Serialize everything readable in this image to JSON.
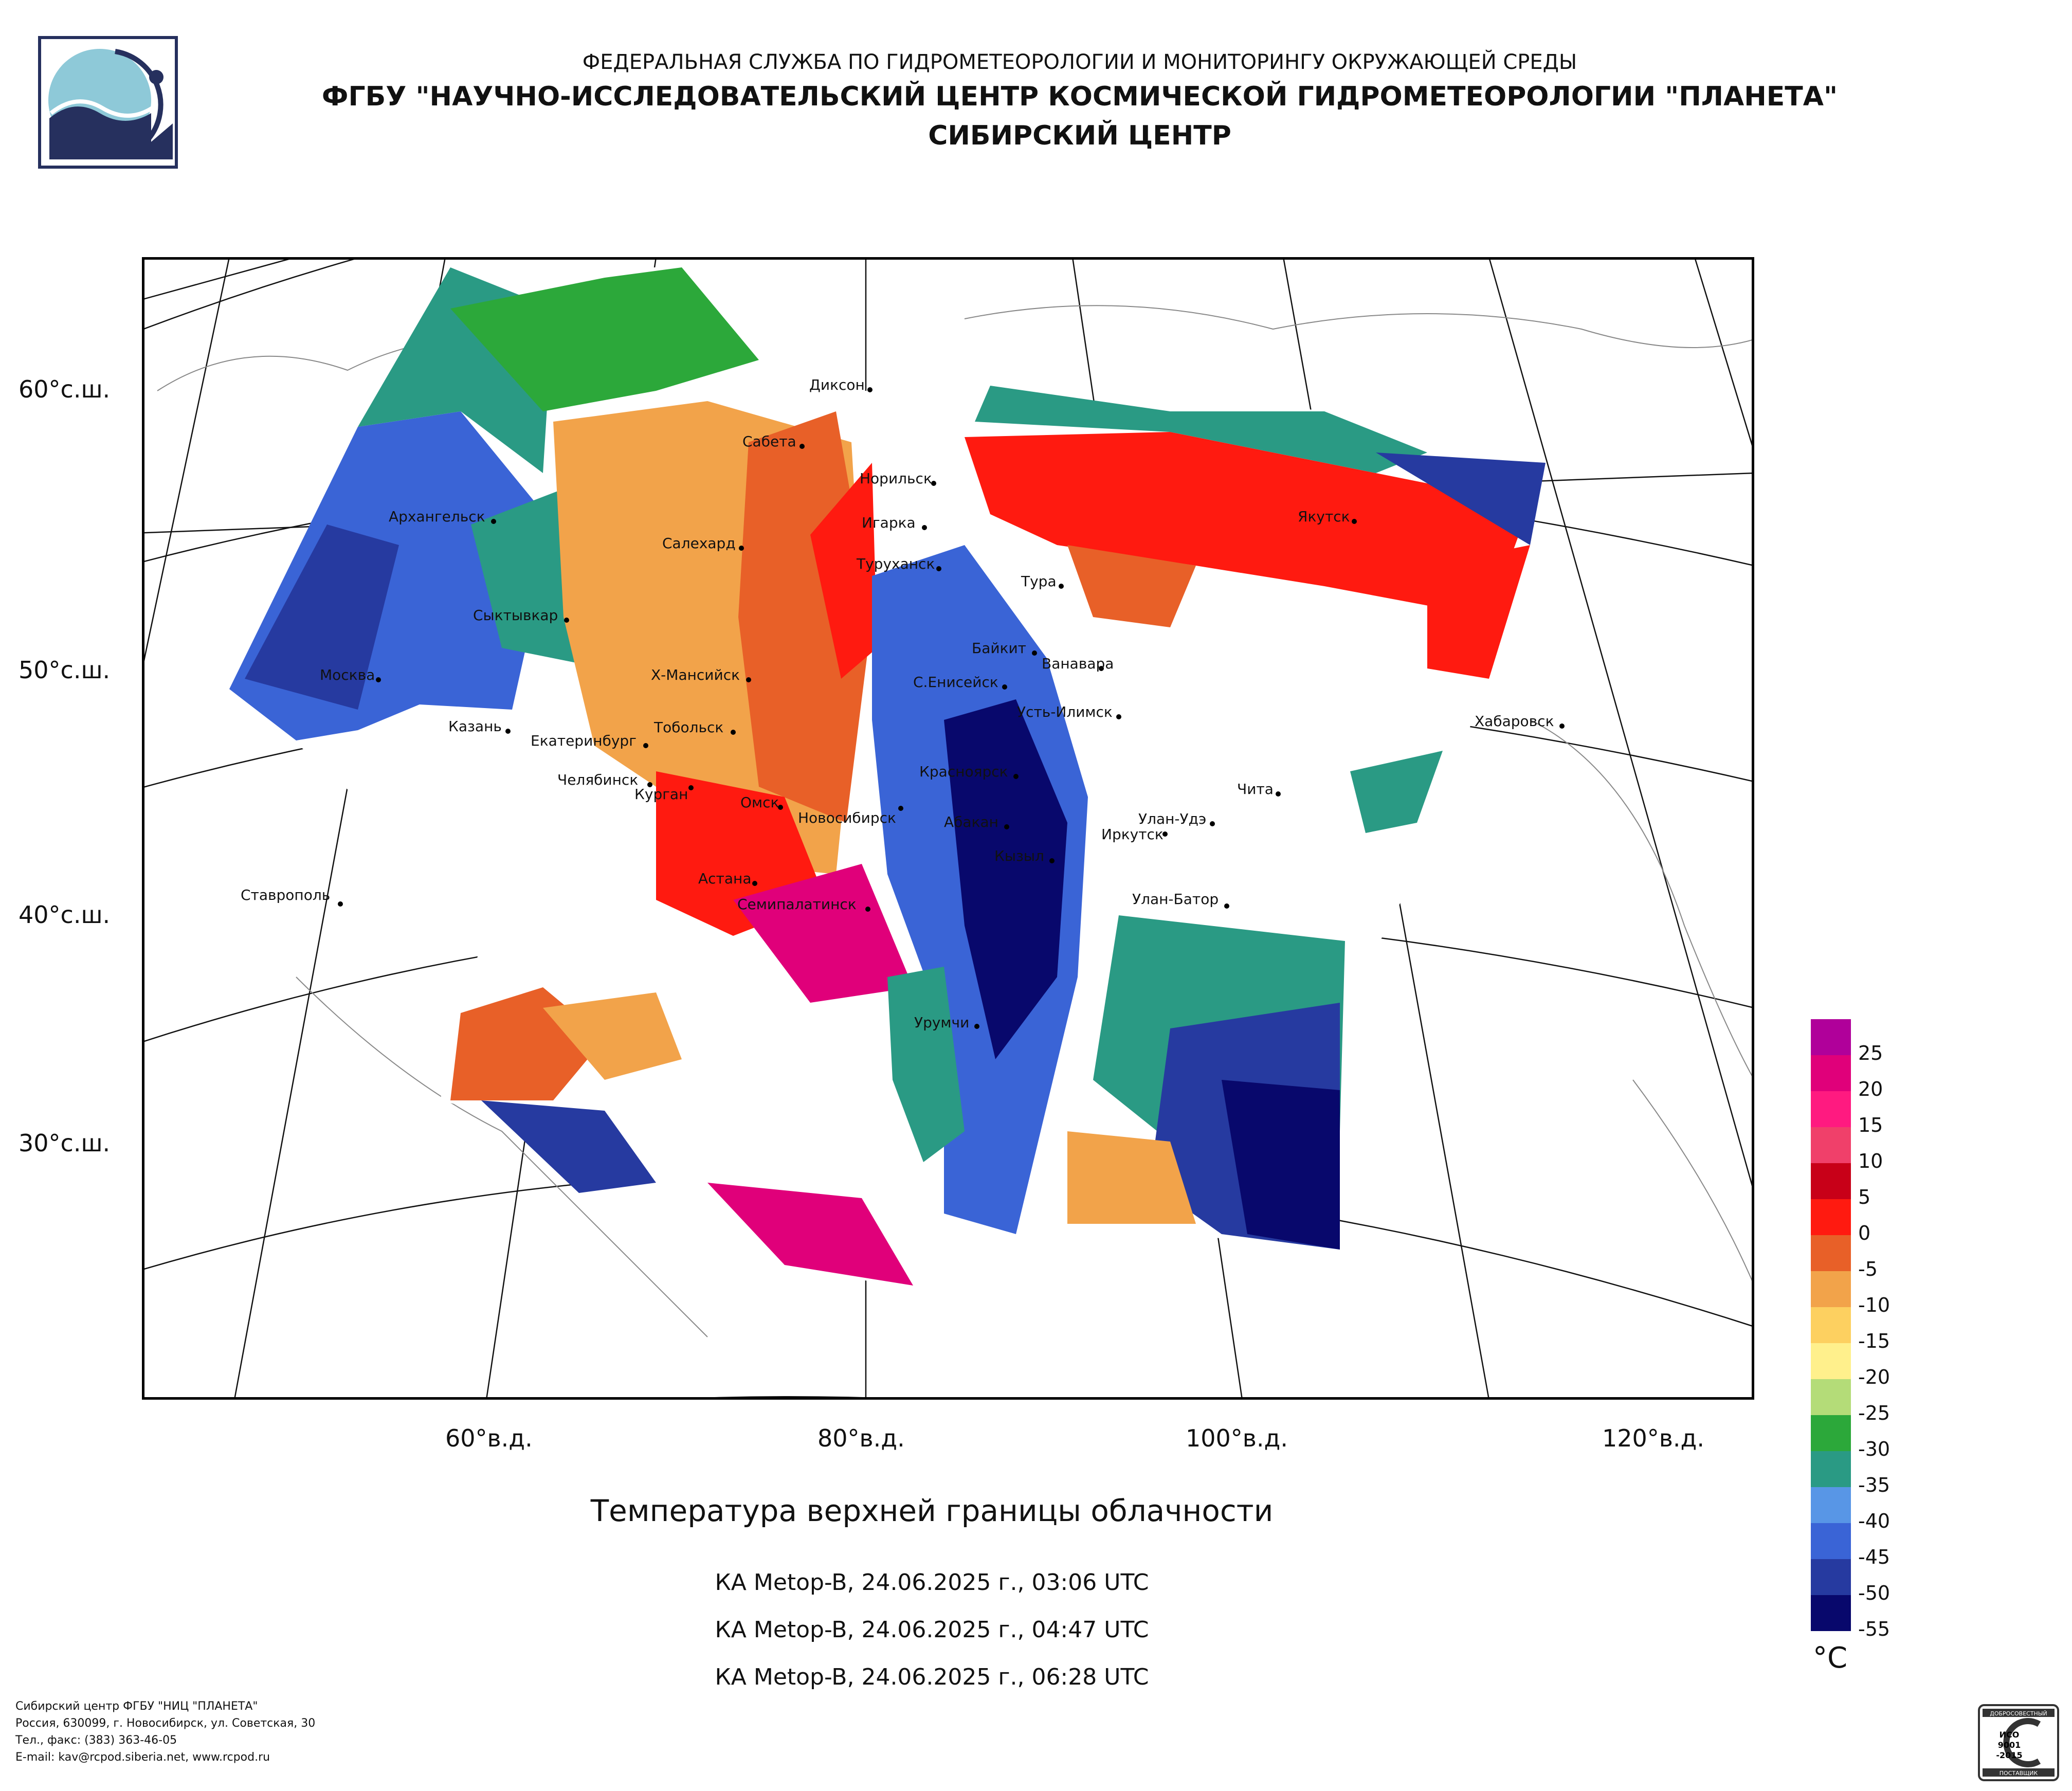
{
  "header": {
    "agency": "ФЕДЕРАЛЬНАЯ СЛУЖБА ПО ГИДРОМЕТЕОРОЛОГИИ И МОНИТОРИНГУ ОКРУЖАЮЩЕЙ СРЕДЫ",
    "institute": "ФГБУ \"НАУЧНО-ИССЛЕДОВАТЕЛЬСКИЙ ЦЕНТР КОСМИЧЕСКОЙ ГИДРОМЕТЕОРОЛОГИИ \"ПЛАНЕТА\"",
    "center": "СИБИРСКИЙ ЦЕНТР"
  },
  "map": {
    "lat_labels": [
      "60°с.ш.",
      "50°с.ш.",
      "40°с.ш.",
      "30°с.ш."
    ],
    "lon_labels": [
      "60°в.д.",
      "80°в.д.",
      "100°в.д.",
      "120°в.д."
    ],
    "cities": [
      "Диксон",
      "Сабета",
      "Норильск",
      "Игарка",
      "Туруханск",
      "Салехард",
      "Тура",
      "Якутск",
      "Архангельск",
      "Сыктывкар",
      "Байкит",
      "Ванавара",
      "Москва",
      "Х-Мансийск",
      "С.Енисейск",
      "Усть-Илимск",
      "Хабаровск",
      "Казань",
      "Екатеринбург",
      "Тобольск",
      "Челябинск",
      "Курган",
      "Омск",
      "Новосибирск",
      "Красноярск",
      "Абакан",
      "Улан-Удэ",
      "Иркутск",
      "Чита",
      "Кызыл",
      "Астана",
      "Семипалатинск",
      "Улан-Батор",
      "Ставрополь",
      "Урумчи"
    ]
  },
  "title": "Температура верхней границы облачности",
  "passes": [
    "КА Metop-B, 24.06.2025 г., 03:06 UTC",
    "КА Metop-B, 24.06.2025 г., 04:47 UTC",
    "КА Metop-B, 24.06.2025 г., 06:28 UTC"
  ],
  "legend": {
    "unit": "°C",
    "labels": [
      "25",
      "20",
      "15",
      "10",
      "5",
      "0",
      "-5",
      "-10",
      "-15",
      "-20",
      "-25",
      "-30",
      "-35",
      "-40",
      "-45",
      "-50",
      "-55"
    ],
    "colors": [
      "#b0009a",
      "#e0007a",
      "#ff1a80",
      "#f0406a",
      "#c80018",
      "#ff1a10",
      "#e86028",
      "#f2a34a",
      "#fdd060",
      "#fff08c",
      "#b4dc78",
      "#2ca83a",
      "#2a9a84",
      "#5896e6",
      "#3a64d6",
      "#263aa0",
      "#08086c"
    ]
  },
  "footer": {
    "line1": "Сибирский центр ФГБУ \"НИЦ \"ПЛАНЕТА\"",
    "line2": "Россия, 630099, г. Новосибирск, ул. Советская, 30",
    "line3": "Тел., факс: (383) 363-46-05",
    "line4": "E-mail: kav@rcpod.siberia.net, www.rcpod.ru"
  },
  "certificate": {
    "top": "ДОБРОСОВЕСТНЫЙ",
    "iso": "ИСО",
    "num": "9001",
    "year": "-2015",
    "bottom": "ПОСТАВЩИК"
  }
}
